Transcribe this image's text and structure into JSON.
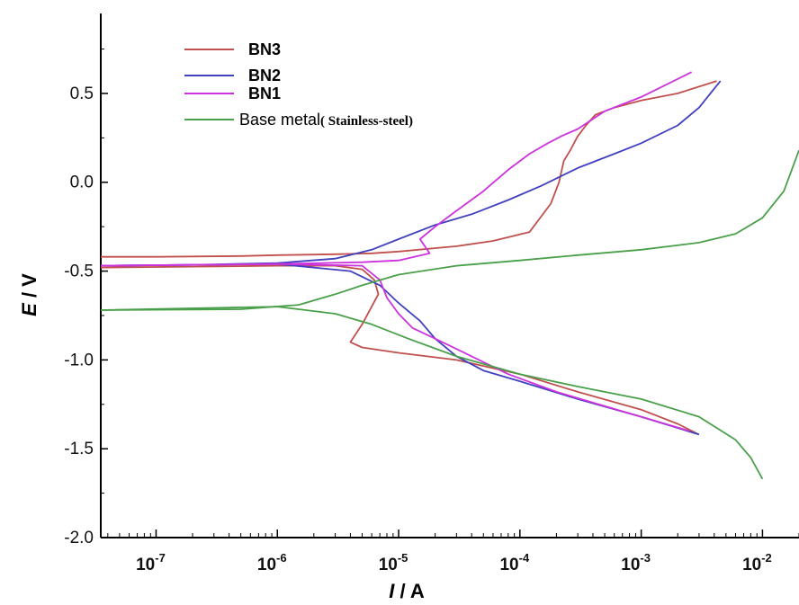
{
  "chart_data": {
    "type": "line",
    "title": "",
    "xlabel": "I / A",
    "ylabel": "E / V",
    "x_scale": "log",
    "xlim": [
      3.5e-08,
      0.02
    ],
    "ylim": [
      -2.0,
      0.95
    ],
    "grid": false,
    "legend_position": "top-left",
    "x_ticks": [
      {
        "value": 1e-07,
        "base": "10",
        "exp": "-7"
      },
      {
        "value": 1e-06,
        "base": "10",
        "exp": "-6"
      },
      {
        "value": 1e-05,
        "base": "10",
        "exp": "-5"
      },
      {
        "value": 0.0001,
        "base": "10",
        "exp": "-4"
      },
      {
        "value": 0.001,
        "base": "10",
        "exp": "-3"
      },
      {
        "value": 0.01,
        "base": "10",
        "exp": "-2"
      }
    ],
    "y_ticks": [
      {
        "value": 0.5,
        "label": "0.5"
      },
      {
        "value": 0.0,
        "label": "0.0"
      },
      {
        "value": -0.5,
        "label": "-0.5"
      },
      {
        "value": -1.0,
        "label": "-1.0"
      },
      {
        "value": -1.5,
        "label": "-1.5"
      },
      {
        "value": -2.0,
        "label": "-2.0"
      }
    ],
    "series": [
      {
        "name": "BN3",
        "color": "#c0504d",
        "points": [
          [
            3.5e-08,
            -0.42
          ],
          [
            1e-07,
            -0.42
          ],
          [
            5e-07,
            -0.415
          ],
          [
            1e-06,
            -0.41
          ],
          [
            3e-06,
            -0.405
          ],
          [
            6e-06,
            -0.4
          ],
          [
            1e-05,
            -0.39
          ],
          [
            3e-05,
            -0.36
          ],
          [
            6e-05,
            -0.33
          ],
          [
            0.00012,
            -0.28
          ],
          [
            0.00018,
            -0.12
          ],
          [
            0.00021,
            0.0
          ],
          [
            0.00023,
            0.12
          ],
          [
            0.00026,
            0.18
          ],
          [
            0.0003,
            0.26
          ],
          [
            0.00035,
            0.32
          ],
          [
            0.00042,
            0.38
          ],
          [
            0.0006,
            0.42
          ],
          [
            0.001,
            0.46
          ],
          [
            0.002,
            0.5
          ],
          [
            0.0042,
            0.57
          ]
        ],
        "cathodic_points": [
          [
            3.5e-08,
            -0.48
          ],
          [
            2e-07,
            -0.475
          ],
          [
            1e-06,
            -0.47
          ],
          [
            3e-06,
            -0.47
          ],
          [
            5e-06,
            -0.49
          ],
          [
            6.3e-06,
            -0.55
          ],
          [
            6.8e-06,
            -0.63
          ],
          [
            6e-06,
            -0.7
          ],
          [
            5e-06,
            -0.8
          ],
          [
            4e-06,
            -0.9
          ],
          [
            5e-06,
            -0.93
          ],
          [
            1e-05,
            -0.96
          ],
          [
            3e-05,
            -1.0
          ],
          [
            0.0001,
            -1.08
          ],
          [
            0.0003,
            -1.18
          ],
          [
            0.001,
            -1.28
          ],
          [
            0.002,
            -1.36
          ],
          [
            0.003,
            -1.42
          ]
        ]
      },
      {
        "name": "BN2",
        "color": "#4040c0",
        "points": [
          [
            3.5e-08,
            -0.47
          ],
          [
            2e-07,
            -0.465
          ],
          [
            1e-06,
            -0.455
          ],
          [
            3e-06,
            -0.43
          ],
          [
            6e-06,
            -0.38
          ],
          [
            1e-05,
            -0.32
          ],
          [
            2e-05,
            -0.24
          ],
          [
            4e-05,
            -0.18
          ],
          [
            8e-05,
            -0.1
          ],
          [
            0.00015,
            -0.02
          ],
          [
            0.0003,
            0.08
          ],
          [
            0.0006,
            0.16
          ],
          [
            0.001,
            0.22
          ],
          [
            0.002,
            0.32
          ],
          [
            0.003,
            0.42
          ],
          [
            0.0045,
            0.57
          ]
        ],
        "cathodic_points": [
          [
            3.5e-08,
            -0.47
          ],
          [
            1e-06,
            -0.46
          ],
          [
            4e-06,
            -0.5
          ],
          [
            7e-06,
            -0.58
          ],
          [
            1e-05,
            -0.68
          ],
          [
            1.5e-05,
            -0.78
          ],
          [
            2e-05,
            -0.88
          ],
          [
            3e-05,
            -0.98
          ],
          [
            5e-05,
            -1.06
          ],
          [
            0.0001,
            -1.12
          ],
          [
            0.0003,
            -1.22
          ],
          [
            0.001,
            -1.32
          ],
          [
            0.003,
            -1.42
          ]
        ]
      },
      {
        "name": "BN1",
        "color": "#cc33dd",
        "points": [
          [
            3.5e-08,
            -0.47
          ],
          [
            1e-06,
            -0.46
          ],
          [
            5e-06,
            -0.45
          ],
          [
            1e-05,
            -0.44
          ],
          [
            1.8e-05,
            -0.4
          ],
          [
            1.5e-05,
            -0.32
          ],
          [
            2e-05,
            -0.25
          ],
          [
            3e-05,
            -0.16
          ],
          [
            5e-05,
            -0.05
          ],
          [
            8e-05,
            0.07
          ],
          [
            0.00012,
            0.16
          ],
          [
            0.00017,
            0.22
          ],
          [
            0.00022,
            0.26
          ],
          [
            0.0003,
            0.3
          ],
          [
            0.0005,
            0.4
          ],
          [
            0.001,
            0.48
          ],
          [
            0.0026,
            0.62
          ]
        ],
        "cathodic_points": [
          [
            3.5e-08,
            -0.47
          ],
          [
            1e-06,
            -0.46
          ],
          [
            5e-06,
            -0.47
          ],
          [
            7e-06,
            -0.55
          ],
          [
            8e-06,
            -0.65
          ],
          [
            1e-05,
            -0.74
          ],
          [
            1.3e-05,
            -0.82
          ],
          [
            2e-05,
            -0.88
          ],
          [
            4e-05,
            -0.98
          ],
          [
            8e-05,
            -1.08
          ],
          [
            0.0002,
            -1.18
          ],
          [
            0.0005,
            -1.26
          ],
          [
            0.001,
            -1.32
          ],
          [
            0.0025,
            -1.4
          ]
        ]
      },
      {
        "name": "Base metal( Stainless-steel)",
        "color": "#4aa04a",
        "points": [
          [
            3.5e-08,
            -0.72
          ],
          [
            5e-07,
            -0.715
          ],
          [
            1.5e-06,
            -0.69
          ],
          [
            3e-06,
            -0.63
          ],
          [
            5e-06,
            -0.58
          ],
          [
            1e-05,
            -0.52
          ],
          [
            3e-05,
            -0.47
          ],
          [
            0.0001,
            -0.44
          ],
          [
            0.0003,
            -0.41
          ],
          [
            0.001,
            -0.38
          ],
          [
            0.003,
            -0.34
          ],
          [
            0.006,
            -0.29
          ],
          [
            0.01,
            -0.2
          ],
          [
            0.015,
            -0.05
          ],
          [
            0.02,
            0.18
          ]
        ],
        "cathodic_points": [
          [
            3.5e-08,
            -0.72
          ],
          [
            1e-06,
            -0.7
          ],
          [
            3e-06,
            -0.74
          ],
          [
            6e-06,
            -0.8
          ],
          [
            1.2e-05,
            -0.88
          ],
          [
            3e-05,
            -0.98
          ],
          [
            0.0001,
            -1.08
          ],
          [
            0.0003,
            -1.15
          ],
          [
            0.001,
            -1.22
          ],
          [
            0.003,
            -1.32
          ],
          [
            0.006,
            -1.45
          ],
          [
            0.008,
            -1.55
          ],
          [
            0.01,
            -1.67
          ]
        ]
      }
    ]
  },
  "legend": {
    "items": [
      {
        "label": "BN3",
        "color": "#c0504d"
      },
      {
        "label": "BN2",
        "color": "#4040c0"
      },
      {
        "label": "BN1",
        "color": "#cc33dd"
      },
      {
        "label": "Base metal",
        "sublabel": "( Stainless-steel)",
        "color": "#4aa04a"
      }
    ]
  },
  "axes_text": {
    "ylabel_sym": "E",
    "ylabel_unit": " / V",
    "xlabel_sym": "I",
    "xlabel_unit": " / A"
  }
}
